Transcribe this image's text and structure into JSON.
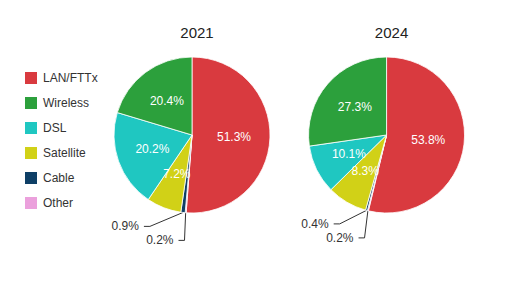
{
  "chart_data": [
    {
      "type": "pie",
      "title": "2021",
      "categories": [
        "LAN/FTTx",
        "Wireless",
        "DSL",
        "Satellite",
        "Cable",
        "Other"
      ],
      "values": [
        51.3,
        20.4,
        20.2,
        7.2,
        0.9,
        0.2
      ],
      "value_labels": [
        "51.3%",
        "20.4%",
        "20.2%",
        "7.2%",
        "0.9%",
        "0.2%"
      ],
      "colors": [
        "#d93a3f",
        "#2ca03c",
        "#1fc7c1",
        "#d1d117",
        "#0e3f66",
        "#eba0dc"
      ],
      "data_labels": true,
      "legend": "left"
    },
    {
      "type": "pie",
      "title": "2024",
      "categories": [
        "LAN/FTTx",
        "Wireless",
        "DSL",
        "Satellite",
        "Cable",
        "Other"
      ],
      "values": [
        53.8,
        27.3,
        10.1,
        8.3,
        0.4,
        0.2
      ],
      "value_labels": [
        "53.8%",
        "27.3%",
        "10.1%",
        "8.3%",
        "0.4%",
        "0.2%"
      ],
      "colors": [
        "#d93a3f",
        "#2ca03c",
        "#1fc7c1",
        "#d1d117",
        "#0e3f66",
        "#eba0dc"
      ],
      "data_labels": true
    }
  ]
}
